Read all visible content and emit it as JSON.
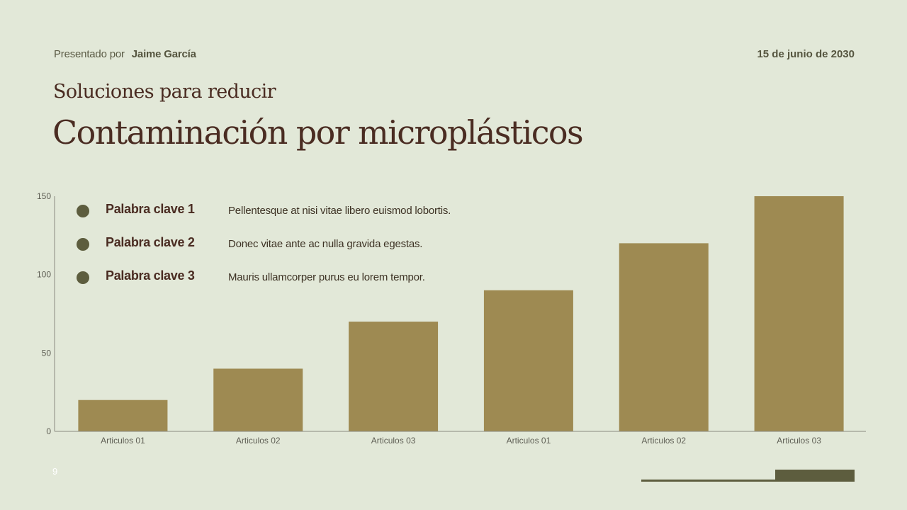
{
  "header": {
    "presented_by_label": "Presentado por",
    "presenter_name": "Jaime García",
    "date": "15 de junio de 2030",
    "subtitle": "Soluciones para reducir",
    "title": "Contaminación por microplásticos"
  },
  "keywords": [
    {
      "label": "Palabra clave 1",
      "description": "Pellentesque at nisi vitae libero euismod lobortis."
    },
    {
      "label": "Palabra clave 2",
      "description": "Donec vitae ante ac nulla gravida egestas."
    },
    {
      "label": "Palabra clave 3",
      "description": "Mauris ullamcorper purus eu lorem tempor."
    }
  ],
  "footer": {
    "page_number": "9"
  },
  "colors": {
    "background": "#e2e8d8",
    "bar": "#9e8a52",
    "accent_dark": "#5d5d3e",
    "title_text": "#4a2c22"
  },
  "chart_data": {
    "type": "bar",
    "categories": [
      "Articulos 01",
      "Articulos 02",
      "Articulos 03",
      "Articulos 01",
      "Articulos 02",
      "Articulos 03"
    ],
    "values": [
      20,
      40,
      70,
      90,
      120,
      150
    ],
    "ylim": [
      0,
      150
    ],
    "yticks": [
      0,
      50,
      100,
      150
    ],
    "title": "",
    "xlabel": "",
    "ylabel": "",
    "grid": false,
    "legend": "none"
  }
}
